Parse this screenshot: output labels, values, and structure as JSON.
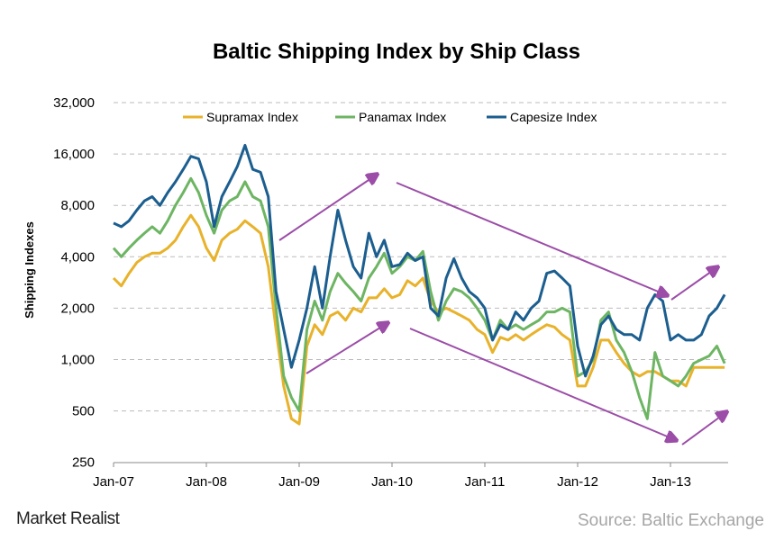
{
  "chart_data": {
    "type": "line",
    "title": "Baltic Shipping Index by Ship Class",
    "xlabel": "",
    "ylabel": "Shipping Indexes",
    "y_scale": "log2",
    "ylim": [
      250,
      32000
    ],
    "y_ticks": [
      "32,000",
      "16,000",
      "8,000",
      "4,000",
      "2,000",
      "1,000",
      "500",
      "250"
    ],
    "y_tick_values": [
      32000,
      16000,
      8000,
      4000,
      2000,
      1000,
      500,
      250
    ],
    "x_ticks": [
      "Jan-07",
      "Jan-08",
      "Jan-09",
      "Jan-10",
      "Jan-11",
      "Jan-12",
      "Jan-13"
    ],
    "x_range": [
      "2007-01",
      "2013-08"
    ],
    "grid": "horizontal dashed",
    "legend_position": "top",
    "annotations": "purple trend arrows",
    "x_start": "2007-01",
    "x_step": "month",
    "series": [
      {
        "name": "Supramax Index",
        "color": "#E8B22A",
        "values": [
          3000,
          2700,
          3200,
          3700,
          4000,
          4200,
          4200,
          4500,
          5000,
          6000,
          7000,
          6000,
          4500,
          3800,
          5000,
          5500,
          5800,
          6500,
          6000,
          5500,
          3500,
          1500,
          700,
          450,
          420,
          1200,
          1600,
          1400,
          1800,
          1900,
          1700,
          2000,
          1900,
          2300,
          2300,
          2600,
          2300,
          2400,
          2900,
          2700,
          3000,
          2200,
          1900,
          2000,
          1900,
          1800,
          1700,
          1500,
          1400,
          1100,
          1350,
          1300,
          1400,
          1300,
          1400,
          1500,
          1600,
          1550,
          1400,
          1300,
          700,
          700,
          900,
          1300,
          1300,
          1100,
          950,
          850,
          800,
          850,
          850,
          800,
          750,
          750,
          700,
          900,
          900,
          900,
          900,
          900
        ]
      },
      {
        "name": "Panamax Index",
        "color": "#6DB563",
        "values": [
          4500,
          4000,
          4500,
          5000,
          5500,
          6000,
          5500,
          6500,
          8000,
          9500,
          11500,
          9500,
          7000,
          5500,
          7500,
          8500,
          9000,
          11000,
          9000,
          8500,
          6000,
          2000,
          800,
          600,
          500,
          1500,
          2200,
          1700,
          2500,
          3200,
          2800,
          2500,
          2200,
          3000,
          3500,
          4200,
          3200,
          3500,
          4000,
          3800,
          4300,
          2500,
          1700,
          2200,
          2600,
          2500,
          2300,
          2000,
          1700,
          1300,
          1700,
          1500,
          1600,
          1500,
          1600,
          1700,
          1900,
          1900,
          2000,
          1900,
          800,
          850,
          1000,
          1700,
          1900,
          1300,
          1100,
          850,
          600,
          450,
          1100,
          800,
          750,
          700,
          800,
          950,
          1000,
          1050,
          1200,
          950
        ]
      },
      {
        "name": "Capesize Index",
        "color": "#1B5E8F",
        "values": [
          6300,
          6000,
          6500,
          7500,
          8500,
          9000,
          8000,
          9500,
          11000,
          13000,
          15500,
          15000,
          11000,
          6000,
          9000,
          11000,
          13500,
          18000,
          13000,
          12500,
          9000,
          2500,
          1500,
          900,
          1300,
          2000,
          3500,
          2000,
          4000,
          7500,
          5000,
          3500,
          3000,
          5500,
          4000,
          5000,
          3500,
          3600,
          4200,
          3800,
          4000,
          2000,
          1800,
          3000,
          3900,
          3000,
          2500,
          2300,
          2000,
          1300,
          1600,
          1500,
          1900,
          1700,
          2000,
          2200,
          3200,
          3300,
          3000,
          2700,
          1200,
          800,
          1050,
          1600,
          1800,
          1500,
          1400,
          1400,
          1300,
          2000,
          2400,
          2200,
          1300,
          1400,
          1300,
          1300,
          1400,
          1800,
          2000,
          2400
        ]
      }
    ]
  },
  "footer": {
    "logo": "Market Realist",
    "source": "Source: Baltic Exchange"
  }
}
